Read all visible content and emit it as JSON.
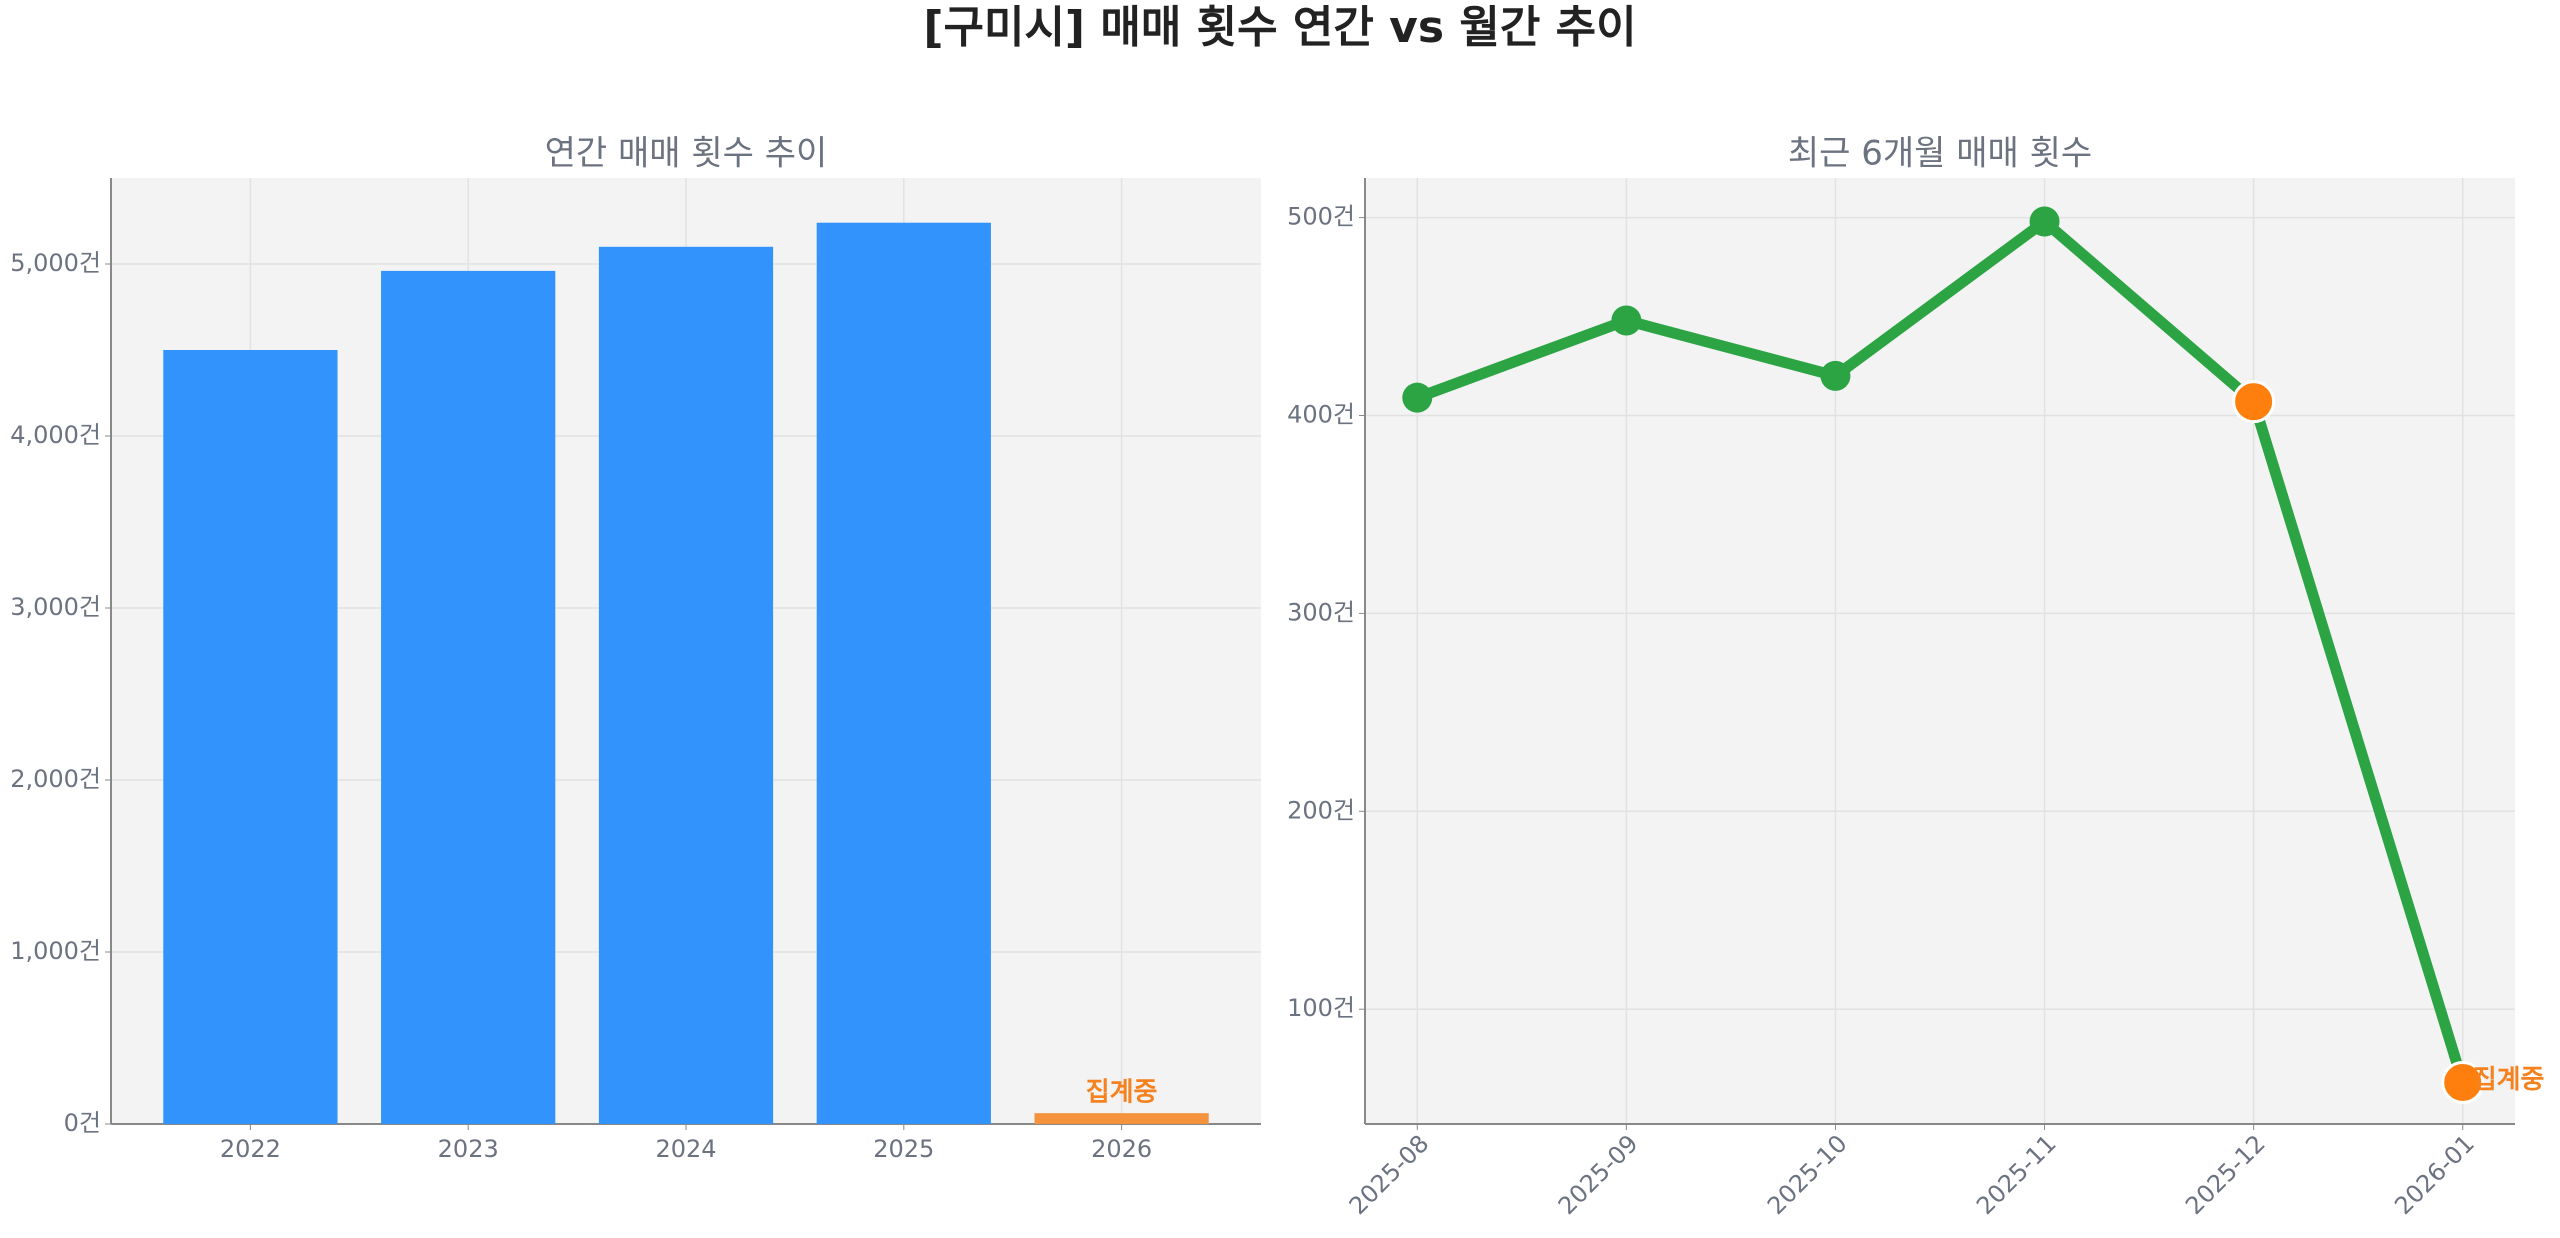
{
  "title": "[구미시] 매매 횟수 연간 vs 월간 추이",
  "chart_data": [
    {
      "type": "bar",
      "title": "연간 매매 횟수 추이",
      "categories": [
        "2022",
        "2023",
        "2024",
        "2025",
        "2026"
      ],
      "values": [
        4500,
        4960,
        5100,
        5240,
        63
      ],
      "colors": [
        "#3193fb",
        "#3193fb",
        "#3193fb",
        "#3193fb",
        "#f5923e"
      ],
      "ylim": [
        0,
        5500
      ],
      "yticks": [
        {
          "value": 0,
          "label": "0건"
        },
        {
          "value": 1000,
          "label": "1,000건"
        },
        {
          "value": 2000,
          "label": "2,000건"
        },
        {
          "value": 3000,
          "label": "3,000건"
        },
        {
          "value": 4000,
          "label": "4,000건"
        },
        {
          "value": 5000,
          "label": "5,000건"
        }
      ],
      "annotation": "집계중",
      "annotation_color": "#f5821f",
      "grid": true
    },
    {
      "type": "line",
      "title": "최근 6개월 매매 횟수",
      "categories": [
        "2025-08",
        "2025-09",
        "2025-10",
        "2025-11",
        "2025-12",
        "2026-01"
      ],
      "values": [
        409,
        448,
        420,
        498,
        407,
        63
      ],
      "color": "#2ca444",
      "point_colors": [
        "#2ca444",
        "#2ca444",
        "#2ca444",
        "#2ca444",
        "#ff7f0e",
        "#ff7f0e"
      ],
      "ylim": [
        42,
        520
      ],
      "yticks": [
        {
          "value": 100,
          "label": "100건"
        },
        {
          "value": 200,
          "label": "200건"
        },
        {
          "value": 300,
          "label": "300건"
        },
        {
          "value": 400,
          "label": "400건"
        },
        {
          "value": 500,
          "label": "500건"
        }
      ],
      "annotation": "집계중",
      "annotation_color": "#f5821f",
      "grid": true
    }
  ]
}
